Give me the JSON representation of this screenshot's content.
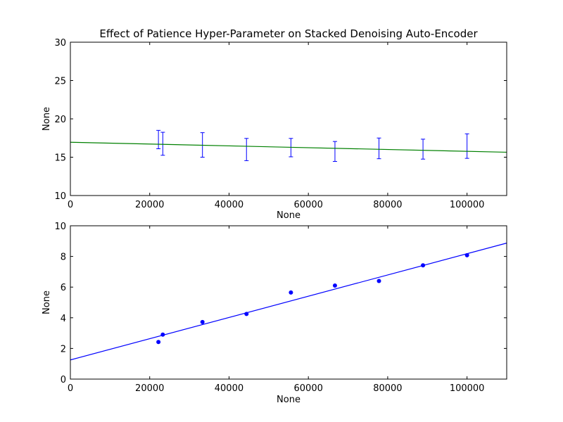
{
  "title": "Effect of Patience Hyper-Parameter on Stacked Denoising Auto-Encoder",
  "chart_data": [
    {
      "type": "errorbar",
      "title": "Effect of Patience Hyper-Parameter on Stacked Denoising Auto-Encoder",
      "xlabel": "None",
      "ylabel": "None",
      "xlim": [
        0,
        110000
      ],
      "ylim": [
        10,
        30
      ],
      "xticks": [
        "0",
        "20000",
        "40000",
        "60000",
        "80000",
        "100000"
      ],
      "yticks": [
        "10",
        "15",
        "20",
        "25",
        "30"
      ],
      "grid": false,
      "series": [
        {
          "kind": "errorbar",
          "color": "#0000ff",
          "x": [
            22200,
            23300,
            33300,
            44400,
            55600,
            66700,
            77800,
            88900,
            100000
          ],
          "y": [
            17.3,
            16.75,
            16.6,
            16.0,
            16.25,
            15.75,
            16.15,
            16.05,
            16.45
          ],
          "yerr": [
            1.2,
            1.5,
            1.6,
            1.45,
            1.2,
            1.3,
            1.35,
            1.3,
            1.6
          ]
        },
        {
          "kind": "line",
          "color": "#008000",
          "x": [
            0,
            110000
          ],
          "y": [
            16.95,
            15.65
          ]
        }
      ]
    },
    {
      "type": "scatter",
      "xlabel": "None",
      "ylabel": "None",
      "xlim": [
        0,
        110000
      ],
      "ylim": [
        0,
        10
      ],
      "xticks": [
        "0",
        "20000",
        "40000",
        "60000",
        "80000",
        "100000"
      ],
      "yticks": [
        "0",
        "2",
        "4",
        "6",
        "8",
        "10"
      ],
      "grid": false,
      "series": [
        {
          "kind": "scatter",
          "color": "#0000ff",
          "x": [
            22200,
            23300,
            33300,
            44400,
            55600,
            66700,
            77800,
            88900,
            100000
          ],
          "y": [
            2.42,
            2.9,
            3.72,
            4.25,
            5.65,
            6.1,
            6.4,
            7.42,
            8.08
          ]
        },
        {
          "kind": "line",
          "color": "#0000ff",
          "x": [
            0,
            110000
          ],
          "y": [
            1.25,
            8.87
          ]
        }
      ]
    }
  ]
}
